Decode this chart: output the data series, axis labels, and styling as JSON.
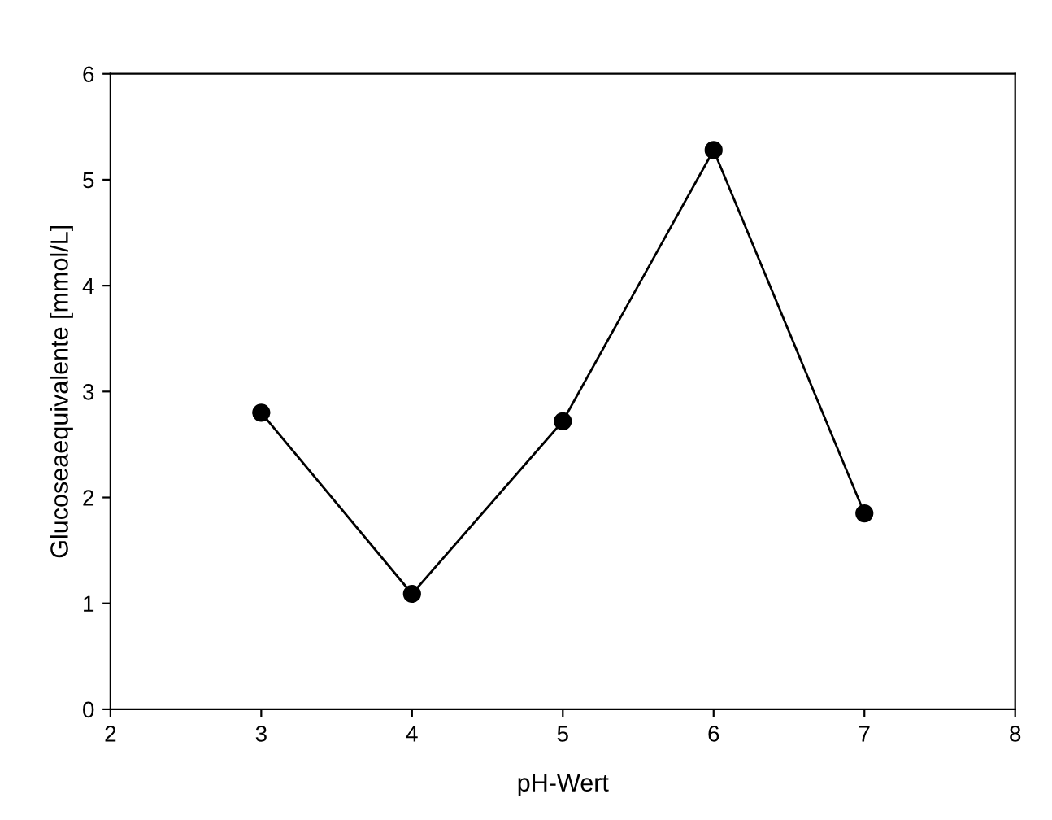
{
  "chart_data": {
    "type": "line",
    "xlabel": "pH-Wert",
    "ylabel": "Glucoseaequivalente [mmol/L]",
    "x": [
      3,
      4,
      5,
      6,
      7
    ],
    "series": [
      {
        "color": "#000000",
        "values": [
          2.8,
          1.09,
          2.72,
          5.28,
          1.85
        ]
      }
    ],
    "xlim": [
      2,
      8
    ],
    "xticks": [
      2,
      3,
      4,
      5,
      6,
      7,
      8
    ],
    "ylim": [
      0,
      6
    ],
    "yticks": [
      0,
      1,
      2,
      3,
      4,
      5,
      6
    ],
    "marker": "circle",
    "line_style": "solid",
    "grid": false,
    "legend": false
  }
}
